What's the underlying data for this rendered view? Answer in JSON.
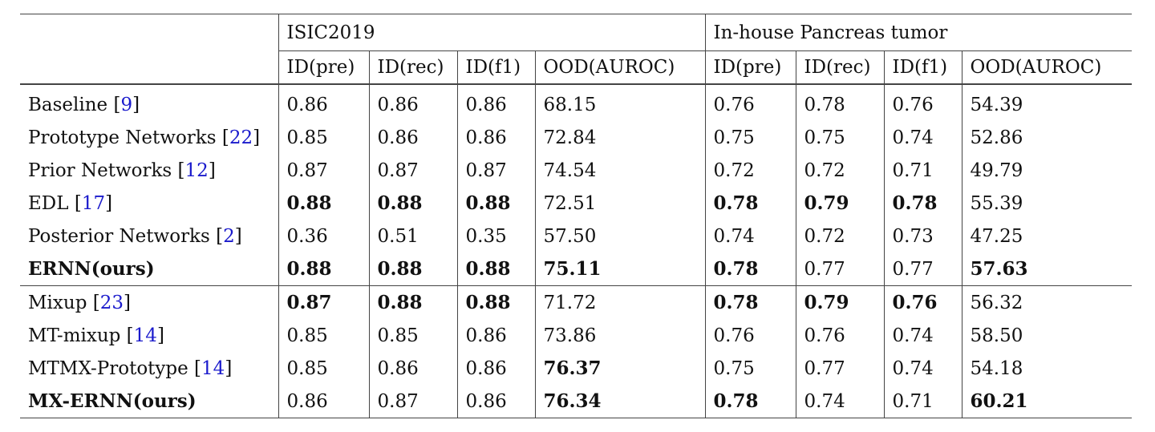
{
  "header": {
    "group1": "ISIC2019",
    "group2": "In-house Pancreas tumor",
    "metrics": [
      "ID(pre)",
      "ID(rec)",
      "ID(f1)",
      "OOD(AUROC)"
    ]
  },
  "rows": [
    {
      "name": "Baseline",
      "ref": "9",
      "values": [
        "0.86",
        "0.86",
        "0.86",
        "68.15",
        "0.76",
        "0.78",
        "0.76",
        "54.39"
      ],
      "bold": []
    },
    {
      "name": "Prototype Networks",
      "ref": "22",
      "values": [
        "0.85",
        "0.86",
        "0.86",
        "72.84",
        "0.75",
        "0.75",
        "0.74",
        "52.86"
      ],
      "bold": []
    },
    {
      "name": "Prior Networks",
      "ref": "12",
      "values": [
        "0.87",
        "0.87",
        "0.87",
        "74.54",
        "0.72",
        "0.72",
        "0.71",
        "49.79"
      ],
      "bold": []
    },
    {
      "name": "EDL",
      "ref": "17",
      "values": [
        "0.88",
        "0.88",
        "0.88",
        "72.51",
        "0.78",
        "0.79",
        "0.78",
        "55.39"
      ],
      "bold": [
        0,
        1,
        2,
        4,
        5,
        6
      ]
    },
    {
      "name": "Posterior Networks",
      "ref": "2",
      "values": [
        "0.36",
        "0.51",
        "0.35",
        "57.50",
        "0.74",
        "0.72",
        "0.73",
        "47.25"
      ],
      "bold": []
    },
    {
      "name": "ERNN(ours)",
      "ref": "",
      "nameBold": true,
      "values": [
        "0.88",
        "0.88",
        "0.88",
        "75.11",
        "0.78",
        "0.77",
        "0.77",
        "57.63"
      ],
      "bold": [
        0,
        1,
        2,
        3,
        4,
        7
      ]
    },
    {
      "name": "Mixup",
      "ref": "23",
      "values": [
        "0.87",
        "0.88",
        "0.88",
        "71.72",
        "0.78",
        "0.79",
        "0.76",
        "56.32"
      ],
      "bold": [
        0,
        1,
        2,
        4,
        5,
        6
      ],
      "sectionStart": true
    },
    {
      "name": "MT-mixup",
      "ref": "14",
      "values": [
        "0.85",
        "0.85",
        "0.86",
        "73.86",
        "0.76",
        "0.76",
        "0.74",
        "58.50"
      ],
      "bold": []
    },
    {
      "name": "MTMX-Prototype",
      "ref": "14",
      "values": [
        "0.85",
        "0.86",
        "0.86",
        "76.37",
        "0.75",
        "0.77",
        "0.74",
        "54.18"
      ],
      "bold": [
        3
      ]
    },
    {
      "name": "MX-ERNN(ours)",
      "ref": "",
      "nameBold": true,
      "values": [
        "0.86",
        "0.87",
        "0.86",
        "76.34",
        "0.78",
        "0.74",
        "0.71",
        "60.21"
      ],
      "bold": [
        3,
        4,
        7
      ]
    }
  ]
}
